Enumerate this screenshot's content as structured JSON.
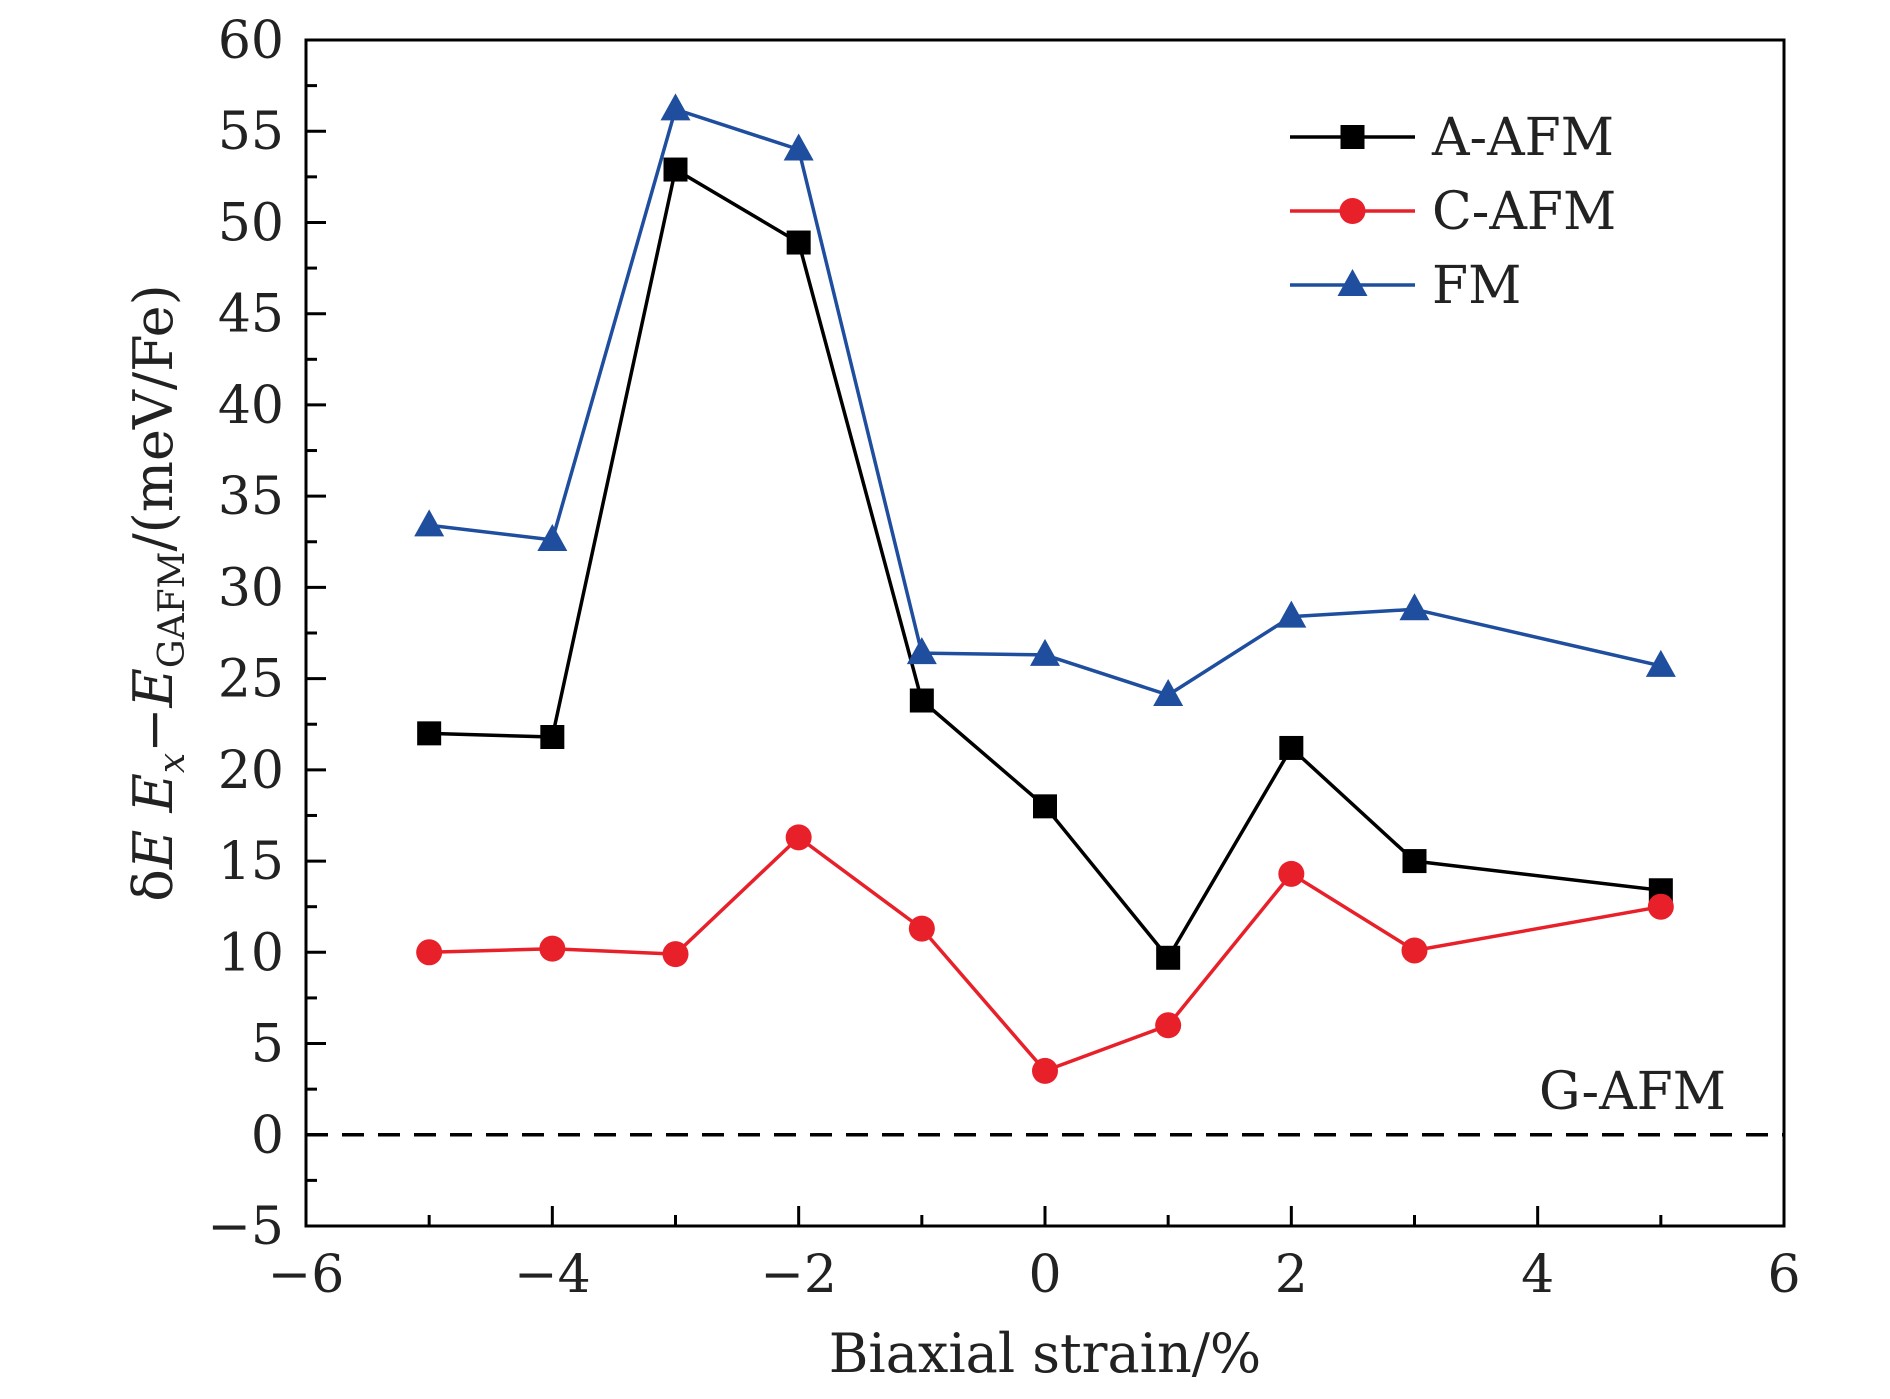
{
  "chart_data": {
    "type": "line",
    "x": [
      -5,
      -4,
      -3,
      -2,
      -1,
      0,
      1,
      2,
      3,
      5
    ],
    "series": [
      {
        "name": "A-AFM",
        "marker": "square",
        "color": "#000000",
        "values": [
          22.0,
          21.8,
          52.9,
          48.9,
          23.8,
          18.0,
          9.7,
          21.2,
          15.0,
          13.4
        ]
      },
      {
        "name": "C-AFM",
        "marker": "circle",
        "color": "#e8202a",
        "values": [
          10.0,
          10.2,
          9.9,
          16.3,
          11.3,
          3.5,
          6.0,
          14.3,
          10.1,
          12.5
        ]
      },
      {
        "name": "FM",
        "marker": "triangle",
        "color": "#1f4e9e",
        "values": [
          33.4,
          32.6,
          56.2,
          54.0,
          26.4,
          26.3,
          24.1,
          28.4,
          28.8,
          25.7
        ]
      }
    ],
    "xlabel": "Biaxial strain/%",
    "ylabel": "δE   Ex−EGAFM/(meV/Fe)",
    "xlim": [
      -6,
      6
    ],
    "ylim": [
      -5,
      60
    ],
    "xticks": [
      "−6",
      "−4",
      "−2",
      "0",
      "2",
      "4",
      "6"
    ],
    "yticks": [
      "−5",
      "0",
      "5",
      "10",
      "15",
      "20",
      "25",
      "30",
      "35",
      "40",
      "45",
      "50",
      "55",
      "60"
    ],
    "reference_line": {
      "y": 0,
      "style": "dashed",
      "label": "G-AFM"
    },
    "legend_position": "top-right",
    "grid": false
  }
}
